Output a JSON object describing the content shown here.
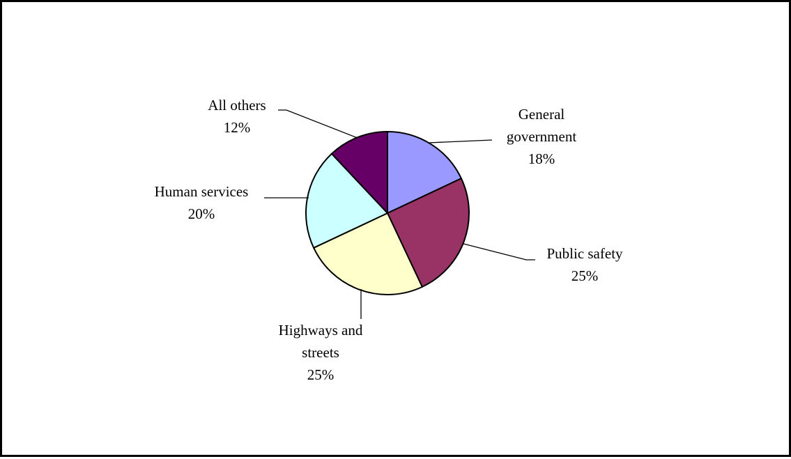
{
  "chart_data": {
    "type": "pie",
    "title": "",
    "slices": [
      {
        "label": [
          "General",
          "government"
        ],
        "value": 18,
        "value_label": "18%",
        "color": "#9999ff"
      },
      {
        "label": [
          "Public safety"
        ],
        "value": 25,
        "value_label": "25%",
        "color": "#993366"
      },
      {
        "label": [
          "Highways and",
          "streets"
        ],
        "value": 25,
        "value_label": "25%",
        "color": "#ffffcc"
      },
      {
        "label": [
          "Human services"
        ],
        "value": 20,
        "value_label": "20%",
        "color": "#ccffff"
      },
      {
        "label": [
          "All others"
        ],
        "value": 12,
        "value_label": "12%",
        "color": "#660066"
      }
    ],
    "start": "12 o'clock",
    "direction": "clockwise",
    "legend": "none"
  }
}
